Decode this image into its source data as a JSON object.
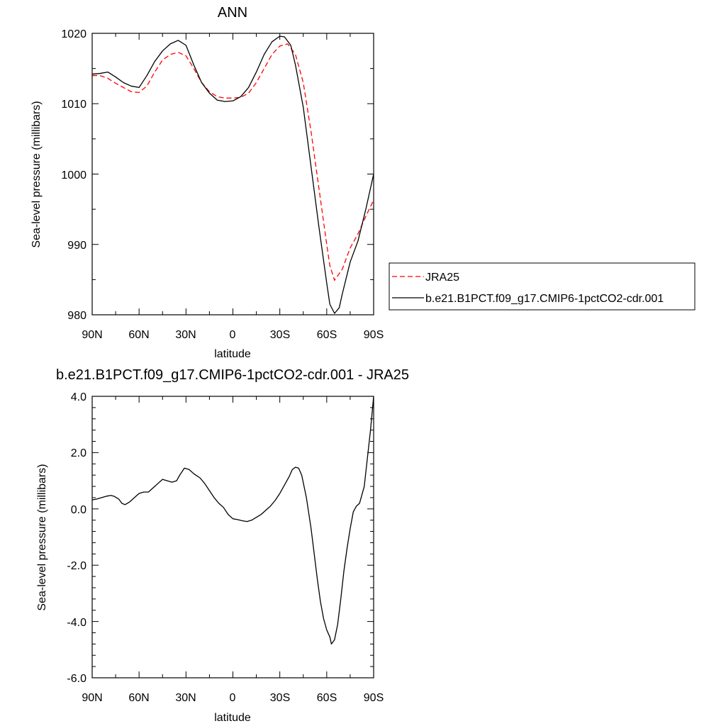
{
  "chart_data": [
    {
      "type": "line",
      "title": "ANN",
      "xlabel": "latitude",
      "ylabel": "Sea-level pressure (millibars)",
      "xlim": [
        90,
        -90
      ],
      "ylim": [
        980,
        1020
      ],
      "xticks": [
        90,
        60,
        30,
        0,
        -30,
        -60,
        -90
      ],
      "xtick_labels": [
        "90N",
        "60N",
        "30N",
        "0",
        "30S",
        "60S",
        "90S"
      ],
      "yticks": [
        980,
        990,
        1000,
        1010,
        1020
      ],
      "ytick_labels": [
        "980",
        "990",
        "1000",
        "1010",
        "1020"
      ],
      "legend_position": "right",
      "series": [
        {
          "name": "JRA25",
          "color": "#ff0000",
          "dash": "dashed",
          "x": [
            90,
            85,
            80,
            75,
            70,
            65,
            60,
            55,
            50,
            45,
            40,
            35,
            30,
            25,
            20,
            15,
            10,
            5,
            0,
            -5,
            -10,
            -15,
            -20,
            -25,
            -30,
            -35,
            -40,
            -45,
            -50,
            -55,
            -60,
            -62,
            -65,
            -70,
            -75,
            -80,
            -85,
            -90
          ],
          "y": [
            1014.0,
            1014.0,
            1013.6,
            1012.9,
            1012.3,
            1011.7,
            1011.6,
            1012.5,
            1014.5,
            1016.2,
            1017.0,
            1017.3,
            1016.8,
            1015.0,
            1013.0,
            1011.7,
            1011.0,
            1010.8,
            1010.8,
            1010.9,
            1011.5,
            1013.0,
            1015.0,
            1017.0,
            1018.2,
            1018.5,
            1017.0,
            1013.0,
            1006.0,
            998.0,
            990.0,
            987.0,
            984.9,
            986.5,
            989.5,
            991.5,
            994.0,
            996.3
          ]
        },
        {
          "name": "b.e21.B1PCT.f09_g17.CMIP6-1pctCO2-cdr.001",
          "color": "#000000",
          "dash": "solid",
          "x": [
            90,
            85,
            80,
            75,
            70,
            65,
            60,
            55,
            50,
            45,
            40,
            35,
            30,
            25,
            20,
            15,
            10,
            5,
            0,
            -5,
            -10,
            -15,
            -20,
            -25,
            -30,
            -33,
            -37,
            -40,
            -45,
            -50,
            -55,
            -60,
            -62,
            -65,
            -68,
            -70,
            -75,
            -80,
            -85,
            -90
          ],
          "y": [
            1014.2,
            1014.3,
            1014.5,
            1013.8,
            1013.0,
            1012.5,
            1012.3,
            1014.0,
            1016.0,
            1017.5,
            1018.5,
            1019.0,
            1018.3,
            1015.5,
            1013.0,
            1011.5,
            1010.5,
            1010.3,
            1010.4,
            1011.0,
            1012.3,
            1014.5,
            1017.0,
            1018.8,
            1019.6,
            1019.5,
            1018.3,
            1015.5,
            1009.5,
            1001.0,
            992.5,
            984.5,
            981.5,
            980.2,
            981.0,
            983.0,
            987.5,
            990.5,
            995.0,
            1000.0
          ]
        }
      ]
    },
    {
      "type": "line",
      "title": "b.e21.B1PCT.f09_g17.CMIP6-1pctCO2-cdr.001 - JRA25",
      "xlabel": "latitude",
      "ylabel": "Sea-level pressure (millibars)",
      "xlim": [
        90,
        -90
      ],
      "ylim": [
        -6.0,
        4.0
      ],
      "xticks": [
        90,
        60,
        30,
        0,
        -30,
        -60,
        -90
      ],
      "xtick_labels": [
        "90N",
        "60N",
        "30N",
        "0",
        "30S",
        "60S",
        "90S"
      ],
      "yticks": [
        -6.0,
        -4.0,
        -2.0,
        0.0,
        2.0,
        4.0
      ],
      "ytick_labels": [
        "-6.0",
        "-4.0",
        "-2.0",
        "0.0",
        "2.0",
        "4.0"
      ],
      "series": [
        {
          "color": "#000000",
          "dash": "solid",
          "x": [
            90,
            87,
            84,
            81,
            78,
            76,
            73,
            71,
            69,
            66,
            63,
            60,
            57,
            54,
            51,
            48,
            45,
            42,
            39,
            36,
            34,
            31,
            28,
            25,
            21,
            18,
            15,
            12,
            9,
            6,
            3,
            0,
            -3,
            -6,
            -9,
            -12,
            -15,
            -18,
            -21,
            -24,
            -27,
            -30,
            -33,
            -36,
            -38,
            -40,
            -42,
            -44,
            -47,
            -50,
            -52,
            -54,
            -56,
            -58,
            -60,
            -62,
            -63,
            -65,
            -67,
            -69,
            -71,
            -73,
            -75,
            -77,
            -79,
            -81,
            -84,
            -86,
            -88,
            -90
          ],
          "y": [
            0.32,
            0.35,
            0.4,
            0.45,
            0.48,
            0.45,
            0.35,
            0.2,
            0.15,
            0.25,
            0.4,
            0.55,
            0.6,
            0.6,
            0.75,
            0.9,
            1.05,
            1.0,
            0.95,
            1.0,
            1.2,
            1.45,
            1.4,
            1.25,
            1.1,
            0.9,
            0.65,
            0.4,
            0.2,
            0.05,
            -0.2,
            -0.35,
            -0.38,
            -0.42,
            -0.45,
            -0.4,
            -0.3,
            -0.2,
            -0.05,
            0.1,
            0.3,
            0.55,
            0.85,
            1.15,
            1.4,
            1.48,
            1.45,
            1.2,
            0.4,
            -0.7,
            -1.6,
            -2.5,
            -3.3,
            -3.9,
            -4.3,
            -4.55,
            -4.8,
            -4.65,
            -4.1,
            -3.2,
            -2.2,
            -1.4,
            -0.7,
            -0.1,
            0.1,
            0.2,
            0.8,
            1.8,
            2.8,
            4.0
          ]
        }
      ]
    }
  ],
  "legend": {
    "items": [
      {
        "label": "JRA25",
        "color": "#ff0000",
        "dash": "dashed"
      },
      {
        "label": "b.e21.B1PCT.f09_g17.CMIP6-1pctCO2-cdr.001",
        "color": "#000000",
        "dash": "solid"
      }
    ]
  }
}
